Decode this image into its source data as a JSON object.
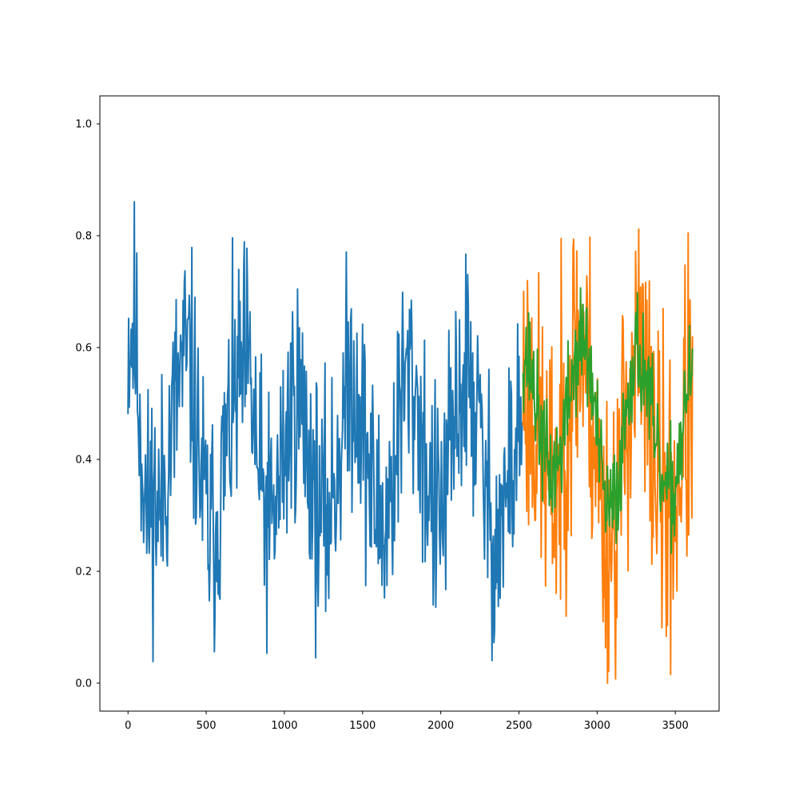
{
  "chart_data": {
    "type": "line",
    "title": "",
    "xlabel": "",
    "ylabel": "",
    "xlim": [
      -180,
      3780
    ],
    "ylim": [
      -0.05,
      1.05
    ],
    "grid": false,
    "legend": "none",
    "x_ticks": [
      0,
      500,
      1000,
      1500,
      2000,
      2500,
      3000,
      3500
    ],
    "x_tick_labels": [
      "0",
      "500",
      "1000",
      "1500",
      "2000",
      "2500",
      "3000",
      "3500"
    ],
    "y_ticks": [
      0.0,
      0.2,
      0.4,
      0.6,
      0.8,
      1.0
    ],
    "y_tick_labels": [
      "0.0",
      "0.2",
      "0.4",
      "0.6",
      "0.8",
      "1.0"
    ],
    "series": [
      {
        "color": "#1f77b4",
        "x_start": 0,
        "x_end": 2526,
        "points": [
          [
            0,
            0.62
          ],
          [
            40,
            0.64
          ],
          [
            80,
            0.46
          ],
          [
            120,
            0.3
          ],
          [
            160,
            0.34
          ],
          [
            200,
            0.3
          ],
          [
            240,
            0.38
          ],
          [
            280,
            0.45
          ],
          [
            320,
            0.53
          ],
          [
            360,
            0.58
          ],
          [
            400,
            0.56
          ],
          [
            440,
            0.44
          ],
          [
            480,
            0.34
          ],
          [
            520,
            0.26
          ],
          [
            560,
            0.28
          ],
          [
            600,
            0.36
          ],
          [
            640,
            0.44
          ],
          [
            680,
            0.5
          ],
          [
            720,
            0.54
          ],
          [
            760,
            0.57
          ],
          [
            800,
            0.48
          ],
          [
            840,
            0.36
          ],
          [
            880,
            0.3
          ],
          [
            920,
            0.28
          ],
          [
            960,
            0.34
          ],
          [
            1000,
            0.42
          ],
          [
            1040,
            0.48
          ],
          [
            1080,
            0.53
          ],
          [
            1120,
            0.47
          ],
          [
            1160,
            0.4
          ],
          [
            1200,
            0.33
          ],
          [
            1240,
            0.29
          ],
          [
            1280,
            0.3
          ],
          [
            1320,
            0.36
          ],
          [
            1360,
            0.44
          ],
          [
            1400,
            0.52
          ],
          [
            1440,
            0.55
          ],
          [
            1480,
            0.5
          ],
          [
            1520,
            0.42
          ],
          [
            1560,
            0.34
          ],
          [
            1600,
            0.3
          ],
          [
            1640,
            0.28
          ],
          [
            1680,
            0.34
          ],
          [
            1720,
            0.44
          ],
          [
            1760,
            0.52
          ],
          [
            1800,
            0.55
          ],
          [
            1840,
            0.52
          ],
          [
            1880,
            0.44
          ],
          [
            1920,
            0.36
          ],
          [
            1960,
            0.3
          ],
          [
            2000,
            0.3
          ],
          [
            2040,
            0.36
          ],
          [
            2080,
            0.44
          ],
          [
            2120,
            0.52
          ],
          [
            2160,
            0.55
          ],
          [
            2200,
            0.52
          ],
          [
            2240,
            0.46
          ],
          [
            2280,
            0.36
          ],
          [
            2320,
            0.28
          ],
          [
            2360,
            0.26
          ],
          [
            2400,
            0.3
          ],
          [
            2440,
            0.36
          ],
          [
            2480,
            0.42
          ],
          [
            2526,
            0.48
          ]
        ],
        "noise": 0.11,
        "seed": 11
      },
      {
        "color": "#ff7f0e",
        "x_start": 2526,
        "x_end": 3610,
        "points": [
          [
            2526,
            0.55
          ],
          [
            2580,
            0.5
          ],
          [
            2640,
            0.42
          ],
          [
            2700,
            0.34
          ],
          [
            2760,
            0.38
          ],
          [
            2800,
            0.48
          ],
          [
            2860,
            0.6
          ],
          [
            2920,
            0.6
          ],
          [
            2980,
            0.46
          ],
          [
            3040,
            0.28
          ],
          [
            3080,
            0.26
          ],
          [
            3120,
            0.3
          ],
          [
            3160,
            0.4
          ],
          [
            3200,
            0.52
          ],
          [
            3260,
            0.58
          ],
          [
            3320,
            0.5
          ],
          [
            3380,
            0.38
          ],
          [
            3440,
            0.3
          ],
          [
            3500,
            0.32
          ],
          [
            3560,
            0.46
          ],
          [
            3610,
            0.52
          ]
        ],
        "noise": 0.14,
        "seed": 23
      },
      {
        "color": "#2ca02c",
        "x_start": 2526,
        "x_end": 3610,
        "points": [
          [
            2526,
            0.6
          ],
          [
            2580,
            0.56
          ],
          [
            2640,
            0.44
          ],
          [
            2700,
            0.37
          ],
          [
            2760,
            0.4
          ],
          [
            2800,
            0.48
          ],
          [
            2860,
            0.58
          ],
          [
            2920,
            0.62
          ],
          [
            2980,
            0.5
          ],
          [
            3040,
            0.34
          ],
          [
            3080,
            0.3
          ],
          [
            3120,
            0.33
          ],
          [
            3160,
            0.42
          ],
          [
            3200,
            0.54
          ],
          [
            3260,
            0.6
          ],
          [
            3320,
            0.54
          ],
          [
            3380,
            0.4
          ],
          [
            3440,
            0.33
          ],
          [
            3500,
            0.35
          ],
          [
            3560,
            0.5
          ],
          [
            3610,
            0.55
          ]
        ],
        "noise": 0.05,
        "seed": 37
      }
    ]
  }
}
